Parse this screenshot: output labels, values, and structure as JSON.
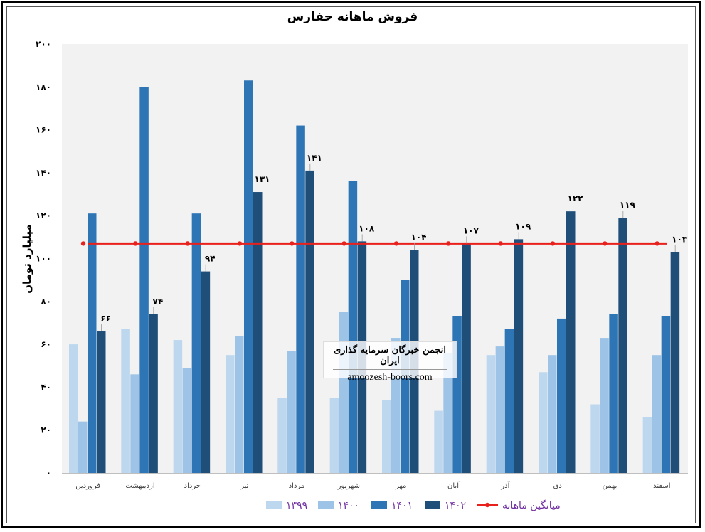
{
  "chart_data": {
    "type": "bar",
    "title": "فروش ماهانه حفارس",
    "ylabel": "میلیارد تومان",
    "ylim": [
      0,
      200
    ],
    "yticks": [
      "۰",
      "۲۰",
      "۴۰",
      "۶۰",
      "۸۰",
      "۱۰۰",
      "۱۲۰",
      "۱۴۰",
      "۱۶۰",
      "۱۸۰",
      "۲۰۰"
    ],
    "ytick_values": [
      0,
      20,
      40,
      60,
      80,
      100,
      120,
      140,
      160,
      180,
      200
    ],
    "grid": false,
    "legend_position": "bottom",
    "categories": [
      "فروردین",
      "اردیبهشت",
      "خرداد",
      "تیر",
      "مرداد",
      "شهریور",
      "مهر",
      "آبان",
      "آذر",
      "دی",
      "بهمن",
      "اسفند"
    ],
    "series": [
      {
        "name": "۱۳۹۹",
        "color": "#bdd7ee",
        "values": [
          60,
          67,
          62,
          55,
          35,
          35,
          34,
          29,
          55,
          47,
          32,
          26
        ]
      },
      {
        "name": "۱۴۰۰",
        "color": "#9dc3e6",
        "values": [
          24,
          46,
          49,
          64,
          57,
          75,
          63,
          56,
          59,
          55,
          63,
          55
        ]
      },
      {
        "name": "۱۴۰۱",
        "color": "#2e75b6",
        "values": [
          121,
          180,
          121,
          183,
          162,
          136,
          90,
          73,
          67,
          72,
          74,
          73
        ]
      },
      {
        "name": "۱۴۰۲",
        "color": "#1f4e79",
        "values": [
          66,
          74,
          94,
          131,
          141,
          108,
          104,
          107,
          109,
          122,
          119,
          103
        ],
        "labels": [
          "۶۶",
          "۷۴",
          "۹۴",
          "۱۳۱",
          "۱۴۱",
          "۱۰۸",
          "۱۰۴",
          "۱۰۷",
          "۱۰۹",
          "۱۲۲",
          "۱۱۹",
          "۱۰۳"
        ]
      }
    ],
    "average_line": {
      "name": "میانگین ماهانه",
      "color": "#e8211d",
      "value": 107
    }
  },
  "watermark": {
    "line1": "انجمن خبرگان سرمایه گذاری ایران",
    "line2": "amoozesh-boors.com"
  },
  "colors": {
    "plot_background": "#f2f2f2",
    "legend_text": "#7030a0"
  }
}
